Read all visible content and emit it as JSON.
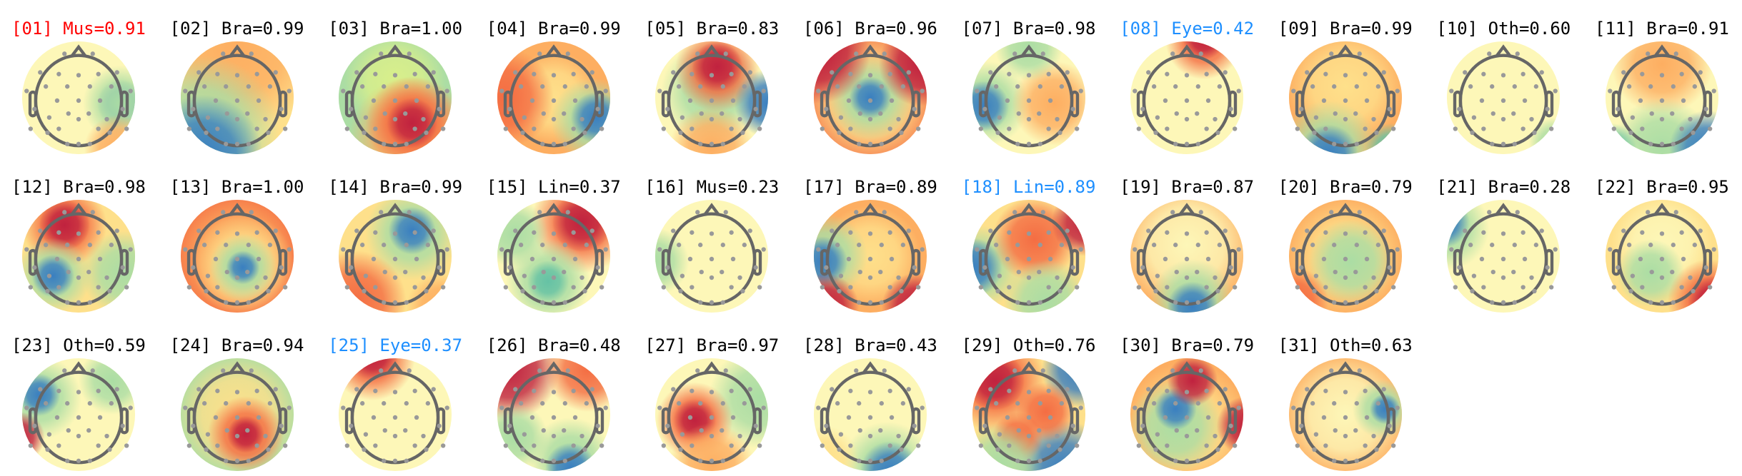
{
  "label_colors": {
    "flagged_muscle": "#ff0000",
    "flagged_other": "#1e8fff",
    "default": "#000000"
  },
  "colormap": [
    "#3288bd",
    "#66c2a5",
    "#abdda4",
    "#e6f598",
    "#ffffbf",
    "#fee08b",
    "#fdae61",
    "#f46d43",
    "#d53e4f",
    "#b2182b"
  ],
  "components": [
    {
      "label": "[01] Mus=0.91",
      "color": "#ff0000"
    },
    {
      "label": "[02] Bra=0.99",
      "color": "#000000"
    },
    {
      "label": "[03] Bra=1.00",
      "color": "#000000"
    },
    {
      "label": "[04] Bra=0.99",
      "color": "#000000"
    },
    {
      "label": "[05] Bra=0.83",
      "color": "#000000"
    },
    {
      "label": "[06] Bra=0.96",
      "color": "#000000"
    },
    {
      "label": "[07] Bra=0.98",
      "color": "#000000"
    },
    {
      "label": "[08] Eye=0.42",
      "color": "#1e8fff"
    },
    {
      "label": "[09] Bra=0.99",
      "color": "#000000"
    },
    {
      "label": "[10] Oth=0.60",
      "color": "#000000"
    },
    {
      "label": "[11] Bra=0.91",
      "color": "#000000"
    },
    {
      "label": "[12] Bra=0.98",
      "color": "#000000"
    },
    {
      "label": "[13] Bra=1.00",
      "color": "#000000"
    },
    {
      "label": "[14] Bra=0.99",
      "color": "#000000"
    },
    {
      "label": "[15] Lin=0.37",
      "color": "#000000"
    },
    {
      "label": "[16] Mus=0.23",
      "color": "#000000"
    },
    {
      "label": "[17] Bra=0.89",
      "color": "#000000"
    },
    {
      "label": "[18] Lin=0.89",
      "color": "#1e8fff"
    },
    {
      "label": "[19] Bra=0.87",
      "color": "#000000"
    },
    {
      "label": "[20] Bra=0.79",
      "color": "#000000"
    },
    {
      "label": "[21] Bra=0.28",
      "color": "#000000"
    },
    {
      "label": "[22] Bra=0.95",
      "color": "#000000"
    },
    {
      "label": "[23] Oth=0.59",
      "color": "#000000"
    },
    {
      "label": "[24] Bra=0.94",
      "color": "#000000"
    },
    {
      "label": "[25] Eye=0.37",
      "color": "#1e8fff"
    },
    {
      "label": "[26] Bra=0.48",
      "color": "#000000"
    },
    {
      "label": "[27] Bra=0.97",
      "color": "#000000"
    },
    {
      "label": "[28] Bra=0.43",
      "color": "#000000"
    },
    {
      "label": "[29] Oth=0.76",
      "color": "#000000"
    },
    {
      "label": "[30] Bra=0.79",
      "color": "#000000"
    },
    {
      "label": "[31] Oth=0.63",
      "color": "#000000"
    }
  ]
}
